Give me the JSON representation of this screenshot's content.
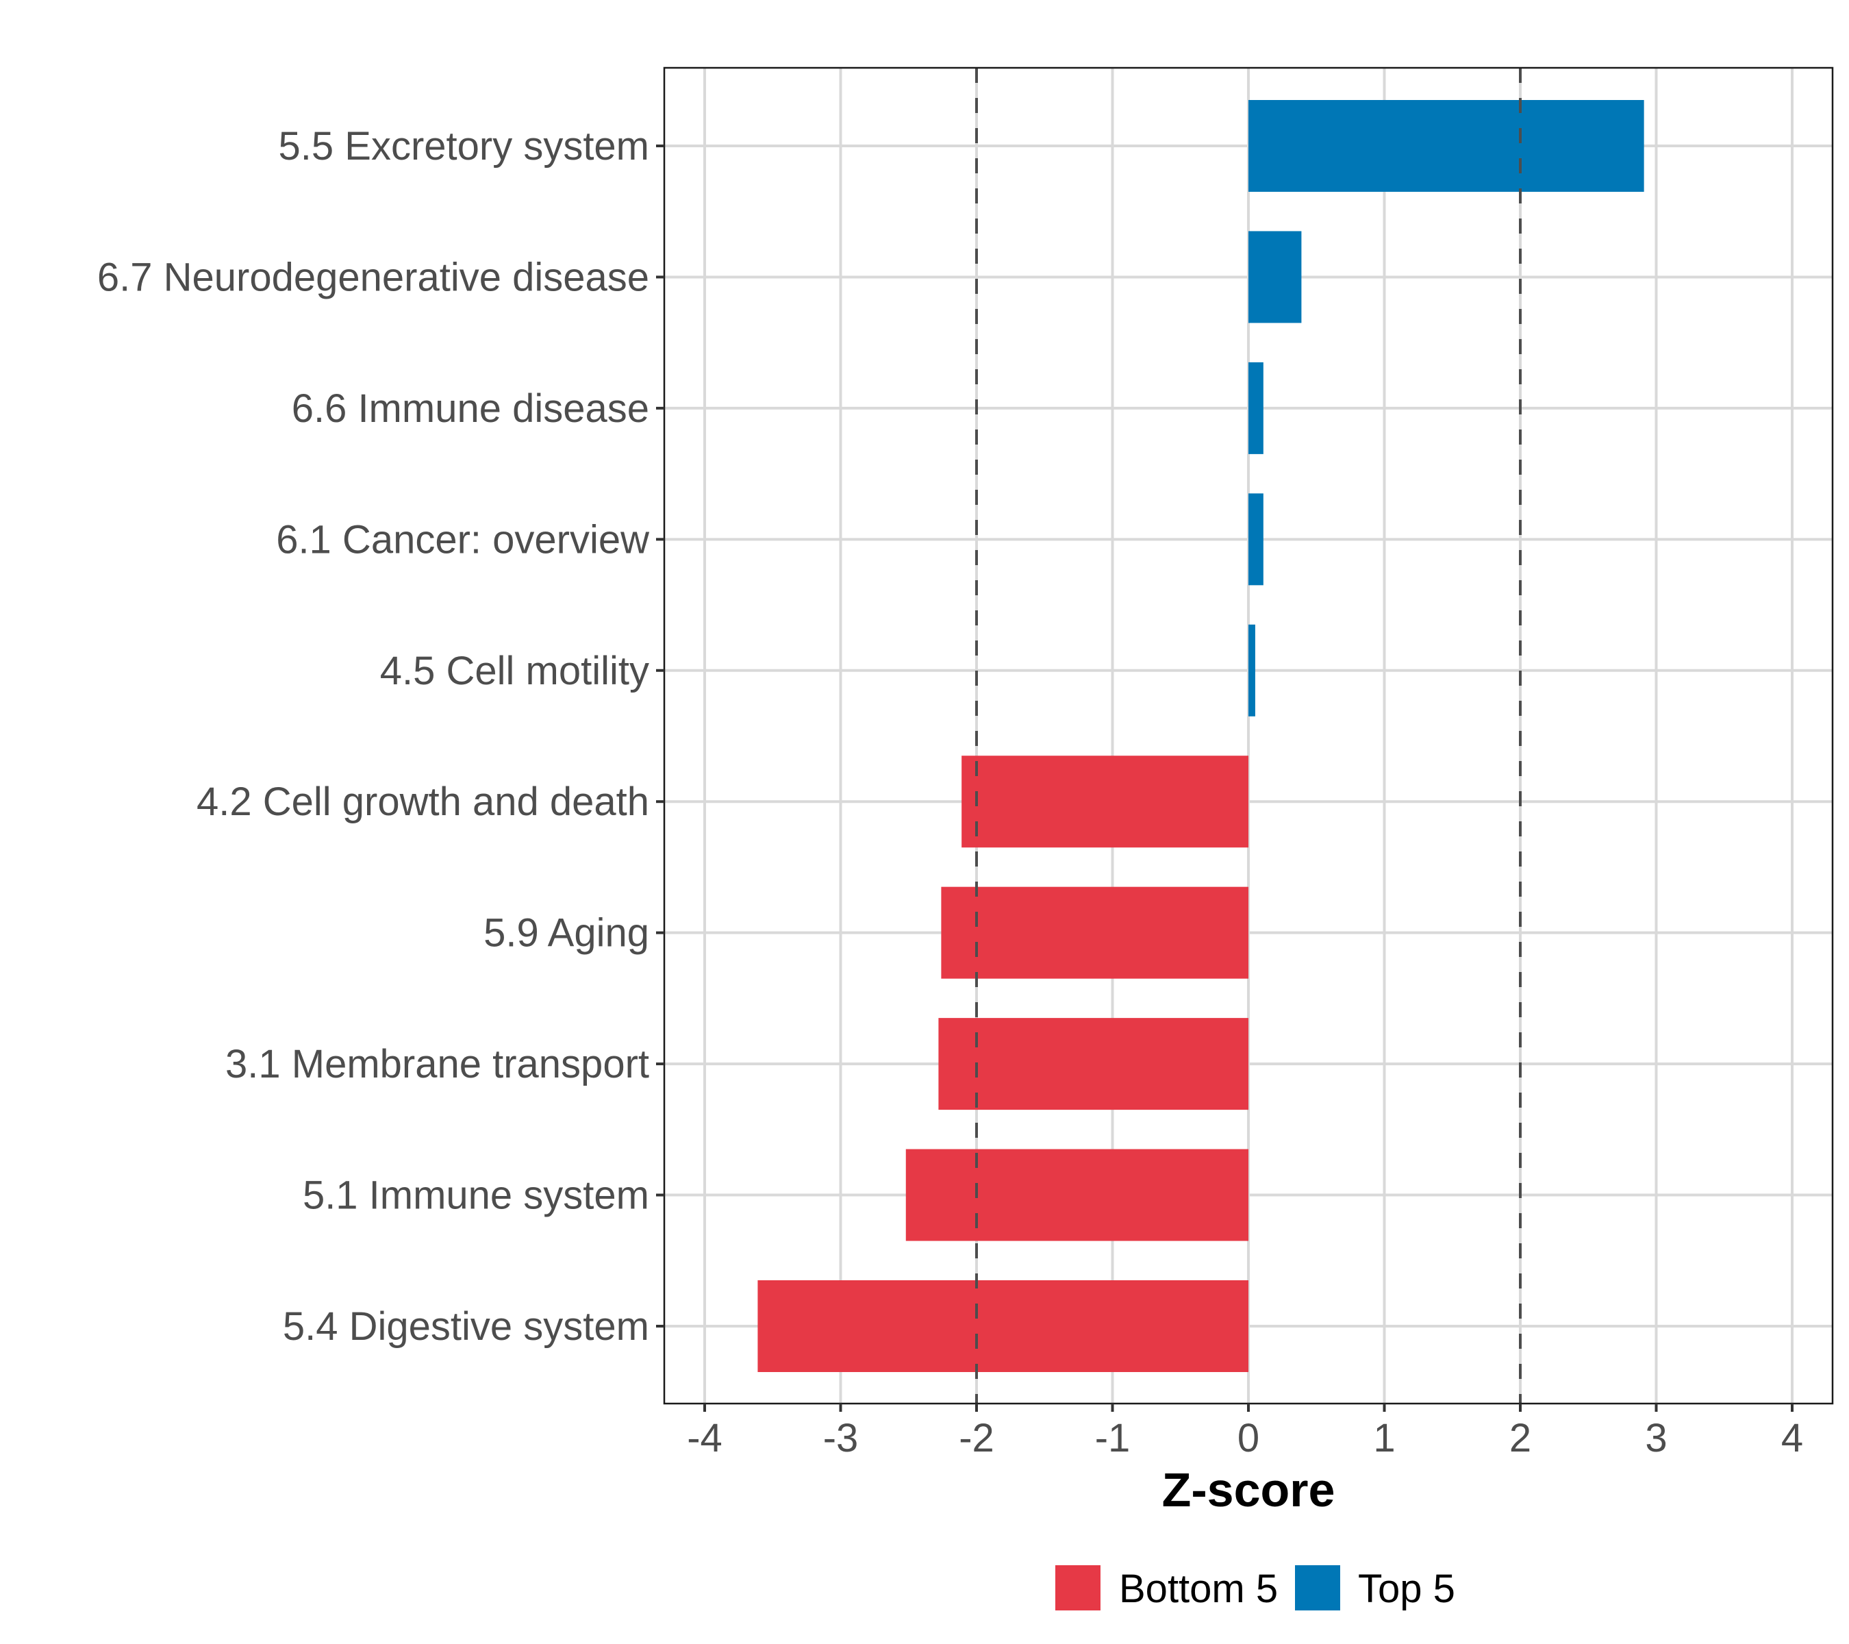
{
  "chart_data": {
    "type": "bar",
    "orientation": "horizontal",
    "title": "",
    "xlabel": "Z-score",
    "ylabel": "",
    "xlim": [
      -4.3,
      4.3
    ],
    "x_ticks": [
      -4,
      -3,
      -2,
      -1,
      0,
      1,
      2,
      3,
      4
    ],
    "x_tick_labels": [
      "-4",
      "-3",
      "-2",
      "-1",
      "0",
      "1",
      "2",
      "3",
      "4"
    ],
    "grid": true,
    "reference_lines": [
      {
        "axis": "x",
        "value": -2,
        "style": "dashed",
        "color": "#4D4D4D"
      },
      {
        "axis": "x",
        "value": 2,
        "style": "dashed",
        "color": "#4D4D4D"
      }
    ],
    "categories": [
      "5.5 Excretory system",
      "6.7 Neurodegenerative disease",
      "6.6 Immune disease",
      "6.1 Cancer: overview",
      "4.5 Cell motility",
      "4.2 Cell growth and death",
      "5.9 Aging",
      "3.1 Membrane transport",
      "5.1 Immune system",
      "5.4 Digestive system"
    ],
    "values": [
      2.91,
      0.39,
      0.11,
      0.11,
      0.05,
      -2.11,
      -2.26,
      -2.28,
      -2.52,
      -3.61
    ],
    "groups": [
      "Top 5",
      "Top 5",
      "Top 5",
      "Top 5",
      "Top 5",
      "Bottom 5",
      "Bottom 5",
      "Bottom 5",
      "Bottom 5",
      "Bottom 5"
    ],
    "legend": {
      "position": "bottom",
      "entries": [
        {
          "label": "Bottom 5",
          "color": "#E63946"
        },
        {
          "label": "Top 5",
          "color": "#0077B6"
        }
      ]
    },
    "colors": {
      "Top 5": "#0077B6",
      "Bottom 5": "#E63946"
    }
  }
}
